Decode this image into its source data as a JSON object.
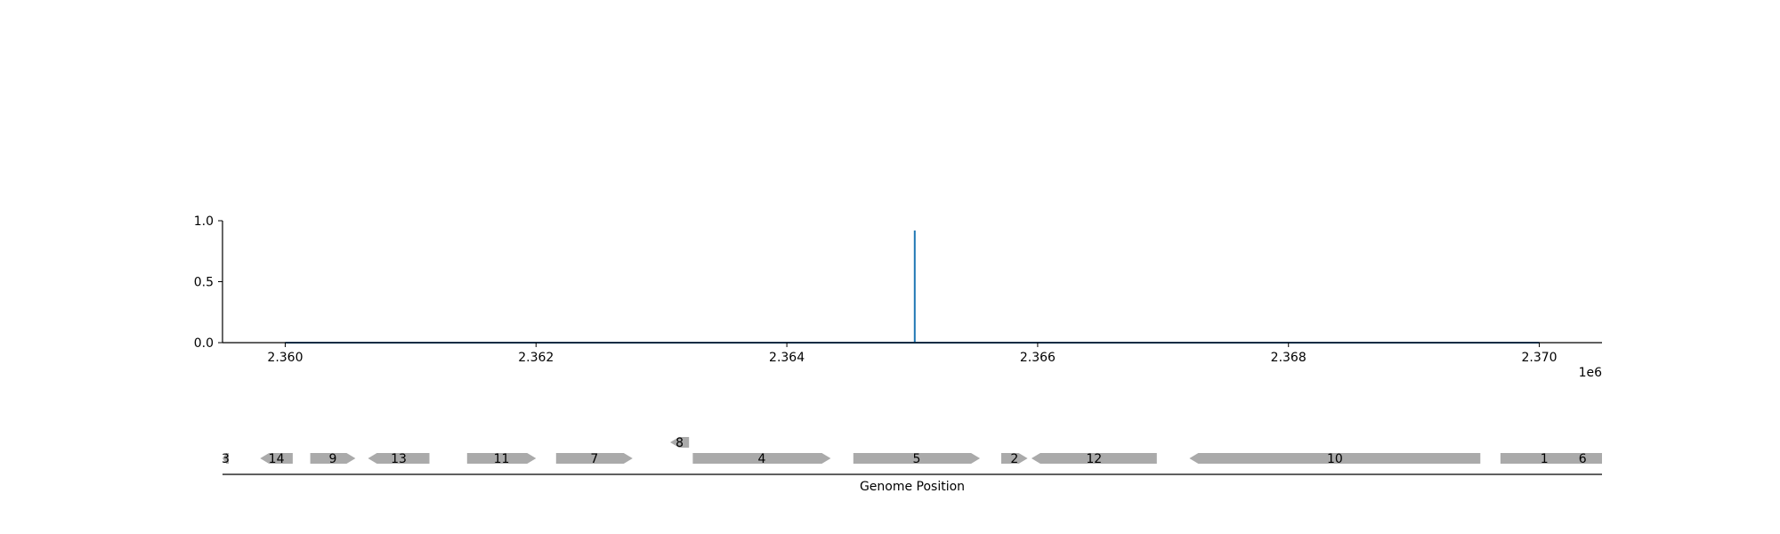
{
  "colors": {
    "signal": "#1f77b4",
    "gene_fill": "#aaaaaa",
    "axis": "#000000"
  },
  "chart_data": [
    {
      "type": "line",
      "title": "",
      "xlabel": "",
      "ylabel": "",
      "x_offset_label": "1e6",
      "xlim": [
        2.3595,
        2.3705
      ],
      "ylim": [
        0.0,
        1.0
      ],
      "x_ticks": [
        {
          "value": 2.36,
          "label": "2.360"
        },
        {
          "value": 2.362,
          "label": "2.362"
        },
        {
          "value": 2.364,
          "label": "2.364"
        },
        {
          "value": 2.366,
          "label": "2.366"
        },
        {
          "value": 2.368,
          "label": "2.368"
        },
        {
          "value": 2.37,
          "label": "2.370"
        }
      ],
      "y_ticks": [
        {
          "value": 0.0,
          "label": "0.0"
        },
        {
          "value": 0.5,
          "label": "0.5"
        },
        {
          "value": 1.0,
          "label": "1.0"
        }
      ],
      "grid": false,
      "series": [
        {
          "x": [
            2.36,
            2.36502,
            2.36502,
            2.36502,
            2.37
          ],
          "y": [
            0.0,
            0.0,
            0.92,
            0.0,
            0.0
          ]
        }
      ]
    },
    {
      "type": "gene_track",
      "xlabel": "Genome Position",
      "genes": [
        {
          "label": "3",
          "start": 2.3594,
          "end": 2.35955,
          "strand": "-",
          "row": 0
        },
        {
          "label": "14",
          "start": 2.3598,
          "end": 2.36006,
          "strand": "-",
          "row": 0
        },
        {
          "label": "9",
          "start": 2.3602,
          "end": 2.36056,
          "strand": "+",
          "row": 0
        },
        {
          "label": "13",
          "start": 2.36066,
          "end": 2.36115,
          "strand": "-",
          "row": 0
        },
        {
          "label": "11",
          "start": 2.36145,
          "end": 2.362,
          "strand": "+",
          "row": 0
        },
        {
          "label": "7",
          "start": 2.36216,
          "end": 2.36277,
          "strand": "+",
          "row": 0
        },
        {
          "label": "8",
          "start": 2.36307,
          "end": 2.36322,
          "strand": "-",
          "row": 1
        },
        {
          "label": "4",
          "start": 2.36325,
          "end": 2.36435,
          "strand": "+",
          "row": 0
        },
        {
          "label": "5",
          "start": 2.36453,
          "end": 2.36554,
          "strand": "+",
          "row": 0
        },
        {
          "label": "2",
          "start": 2.36571,
          "end": 2.36592,
          "strand": "+",
          "row": 0
        },
        {
          "label": "12",
          "start": 2.36595,
          "end": 2.36695,
          "strand": "-",
          "row": 0
        },
        {
          "label": "10",
          "start": 2.36721,
          "end": 2.36953,
          "strand": "-",
          "row": 0
        },
        {
          "label": "1",
          "start": 2.36969,
          "end": 2.37039,
          "strand": "+",
          "row": 0
        },
        {
          "label": "6",
          "start": 2.37019,
          "end": 2.3705,
          "strand": "-",
          "row": 0
        }
      ]
    }
  ]
}
